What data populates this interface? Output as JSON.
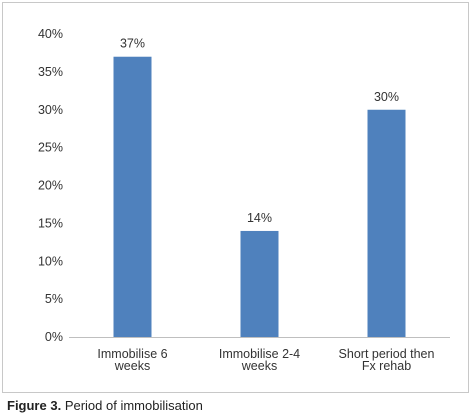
{
  "chart_data": {
    "type": "bar",
    "categories": [
      [
        "Immobilise 6",
        "weeks"
      ],
      [
        "Immobilise 2-4",
        "weeks"
      ],
      [
        "Short period then",
        "Fx rehab"
      ]
    ],
    "values": [
      37,
      14,
      30
    ],
    "data_labels": [
      "37%",
      "14%",
      "30%"
    ],
    "ylim": [
      0,
      40
    ],
    "yticks": [
      0,
      5,
      10,
      15,
      20,
      25,
      30,
      35,
      40
    ],
    "ytick_labels": [
      "0%",
      "5%",
      "10%",
      "15%",
      "20%",
      "25%",
      "30%",
      "35%",
      "40%"
    ],
    "bar_color": "#4f81bd",
    "grid": false,
    "legend": "none"
  },
  "caption": {
    "label": "Figure 3.",
    "text": "Period of immobilisation"
  }
}
